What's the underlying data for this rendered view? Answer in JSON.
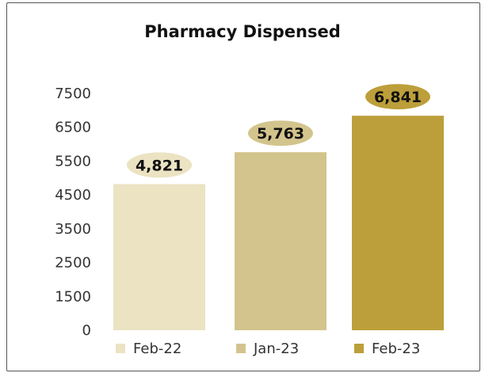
{
  "chart_data": {
    "type": "bar",
    "title": "Pharmacy Dispensed",
    "categories": [
      "Feb-22",
      "Jan-23",
      "Feb-23"
    ],
    "values": [
      4821,
      5763,
      6841
    ],
    "data_labels": [
      "4,821",
      "5,763",
      "6,841"
    ],
    "colors": [
      "#ebe3c2",
      "#d3c48d",
      "#bc9f3a"
    ],
    "y_ticks": [
      0,
      1500,
      2500,
      3500,
      4500,
      5500,
      6500,
      7500
    ],
    "y_tick_labels": [
      "0",
      "1500",
      "2500",
      "3500",
      "4500",
      "5500",
      "6500",
      "7500"
    ],
    "ylim": [
      0,
      7500
    ],
    "grid": false,
    "legend": "bottom"
  }
}
